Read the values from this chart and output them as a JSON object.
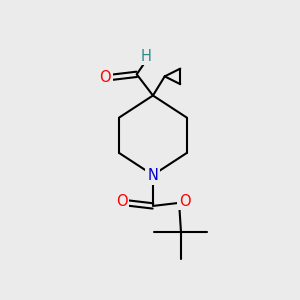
{
  "bg_color": "#ebebeb",
  "bond_color": "#000000",
  "bond_width": 1.5,
  "atom_colors": {
    "O": "#ff0000",
    "N": "#0000cc",
    "H": "#2e8b8b",
    "C": "#000000"
  },
  "font_size": 10.5
}
